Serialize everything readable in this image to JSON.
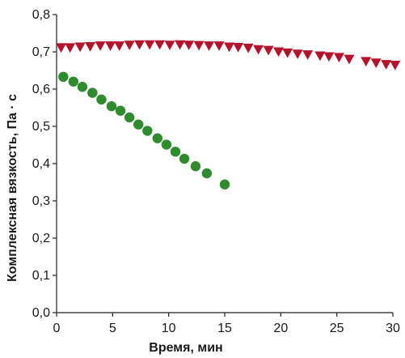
{
  "chart_data": {
    "type": "scatter",
    "xlabel": "Время, мин",
    "ylabel": "Комплексная вязкость, Па · с",
    "xlim": [
      0,
      30
    ],
    "ylim": [
      0,
      0.8
    ],
    "x_ticks": [
      0,
      5,
      10,
      15,
      20,
      25,
      30
    ],
    "x_tick_labels": [
      "0",
      "5",
      "10",
      "15",
      "20",
      "25",
      "30"
    ],
    "y_ticks": [
      0,
      0.1,
      0.2,
      0.3,
      0.4,
      0.5,
      0.6,
      0.7,
      0.8
    ],
    "y_tick_labels": [
      "0,0",
      "0,1",
      "0,2",
      "0,3",
      "0,4",
      "0,5",
      "0,6",
      "0,7",
      "0,8"
    ],
    "grid": false,
    "series": [
      {
        "marker": "triangle-down",
        "color": "#b5122b",
        "x": [
          0.4,
          1.2,
          2.1,
          3.0,
          3.9,
          4.8,
          5.6,
          6.5,
          7.4,
          8.3,
          9.2,
          10.1,
          11.0,
          11.8,
          12.7,
          13.6,
          14.5,
          15.4,
          16.2,
          17.1,
          18.0,
          18.9,
          19.8,
          20.6,
          21.5,
          22.4,
          23.5,
          24.3,
          25.2,
          26.1,
          27.6,
          28.5,
          29.4,
          30.2
        ],
        "y": [
          0.711,
          0.711,
          0.713,
          0.714,
          0.716,
          0.716,
          0.716,
          0.718,
          0.719,
          0.719,
          0.719,
          0.718,
          0.719,
          0.718,
          0.717,
          0.716,
          0.716,
          0.713,
          0.712,
          0.71,
          0.706,
          0.704,
          0.7,
          0.697,
          0.694,
          0.692,
          0.689,
          0.687,
          0.685,
          0.68,
          0.674,
          0.67,
          0.666,
          0.664
        ]
      },
      {
        "marker": "circle",
        "color": "#2e8b2e",
        "x": [
          0.6,
          1.5,
          2.3,
          3.2,
          4.0,
          4.9,
          5.7,
          6.5,
          7.3,
          8.1,
          9.0,
          9.8,
          10.6,
          11.4,
          12.4,
          13.4,
          15.0
        ],
        "y": [
          0.633,
          0.62,
          0.606,
          0.59,
          0.572,
          0.554,
          0.542,
          0.524,
          0.505,
          0.488,
          0.468,
          0.451,
          0.432,
          0.413,
          0.393,
          0.374,
          0.344
        ]
      }
    ]
  }
}
